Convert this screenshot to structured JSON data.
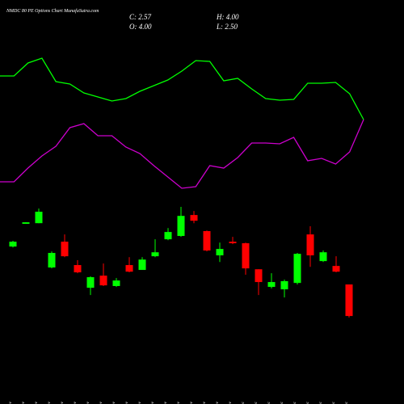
{
  "chart_data": {
    "type": "candlestick",
    "title": "NMDC 80 PE Options Chart MunafaSutra.com",
    "ohlc_labels": [
      "C: 2.57",
      "H: 4.00",
      "O: 4.00",
      "L: 2.50"
    ],
    "categories": [
      "04 Nov",
      "05 Nov",
      "07 Nov",
      "10 Nov",
      "11 Nov",
      "12 Nov",
      "13 Nov",
      "14 Nov",
      "17 Nov",
      "18 Nov",
      "19 Nov",
      "20 Nov",
      "21 Nov",
      "24 Nov",
      "25 Nov",
      "26 Nov",
      "27 Nov",
      "28 Nov",
      "01 Dec",
      "02 Dec",
      "03 Dec",
      "04 Dec",
      "05 Dec",
      "08 Dec",
      "09 Dec",
      "11 Dec",
      "12 Dec"
    ],
    "open": [
      5.72,
      6.75,
      6.78,
      4.77,
      5.94,
      4.88,
      3.85,
      4.4,
      3.93,
      4.88,
      4.66,
      5.28,
      6.05,
      6.2,
      7.15,
      6.42,
      5.32,
      5.94,
      5.87,
      4.69,
      3.89,
      3.78,
      4.07,
      6.27,
      5.06,
      4.84,
      4.0
    ],
    "high": [
      5.98,
      6.82,
      7.44,
      5.5,
      6.27,
      5.1,
      4.37,
      4.95,
      4.29,
      5.24,
      5.24,
      6.05,
      6.56,
      7.52,
      7.33,
      6.45,
      5.9,
      6.16,
      5.9,
      4.69,
      4.51,
      4.22,
      5.43,
      6.64,
      5.54,
      5.28,
      4.0
    ],
    "low": [
      5.68,
      6.75,
      6.78,
      4.73,
      5.24,
      4.51,
      3.52,
      3.93,
      3.89,
      4.55,
      4.66,
      5.24,
      6.01,
      6.16,
      6.78,
      5.5,
      5.02,
      5.83,
      4.44,
      3.52,
      3.82,
      3.41,
      4.0,
      4.8,
      5.02,
      4.55,
      2.5
    ],
    "close": [
      5.94,
      6.82,
      7.3,
      5.43,
      5.28,
      4.55,
      4.33,
      3.96,
      4.18,
      4.58,
      5.13,
      5.46,
      6.38,
      7.11,
      6.89,
      5.54,
      5.61,
      5.87,
      4.73,
      4.11,
      4.11,
      4.15,
      5.39,
      5.32,
      5.46,
      4.58,
      2.57
    ],
    "up_color": "#00ff00",
    "down_color": "#ff0000",
    "lines": [
      {
        "color": "#00ff00",
        "values": [
          206,
          206,
          222,
          228,
          199,
          196,
          185,
          180,
          175,
          178,
          187,
          194,
          201,
          212,
          225,
          224,
          200,
          203,
          190,
          178,
          176,
          177,
          197,
          197,
          198,
          184,
          152
        ]
      },
      {
        "color": "#cc00cc",
        "values": [
          75,
          75,
          92,
          107,
          119,
          142,
          147,
          132,
          132,
          118,
          110,
          95,
          81,
          67,
          69,
          95,
          92,
          105,
          123,
          123,
          122,
          130,
          101,
          104,
          97,
          112,
          152
        ]
      }
    ]
  }
}
